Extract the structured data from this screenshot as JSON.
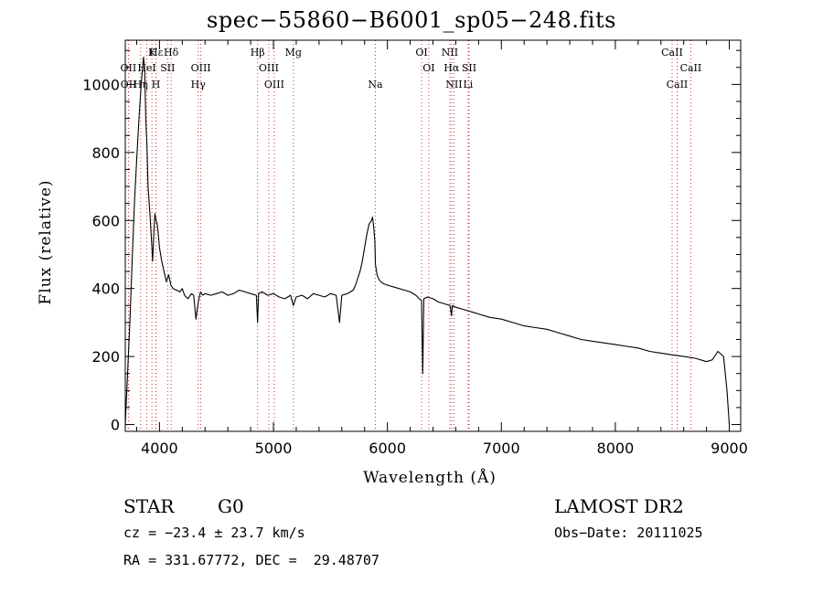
{
  "header": {
    "title": "spec−55860−B6001_sp05−248.fits"
  },
  "footer": {
    "class_label": "STAR",
    "subclass_label": "G0",
    "survey": "LAMOST DR2",
    "cz": "cz = −23.4 ± 23.7 km/s",
    "obs_date": "Obs−Date: 20111025",
    "radec": "RA = 331.67772, DEC =  29.48707"
  },
  "chart_data": {
    "type": "line",
    "title": "spec−55860−B6001_sp05−248.fits",
    "xlabel": "Wavelength (Å)",
    "ylabel": "Flux (relative)",
    "xlim": [
      3700,
      9100
    ],
    "ylim": [
      -20,
      1130
    ],
    "x_ticks": [
      4000,
      5000,
      6000,
      7000,
      8000,
      9000
    ],
    "y_ticks": [
      0,
      200,
      400,
      600,
      800,
      1000
    ],
    "grid": false,
    "series": [
      {
        "x": [
          3700,
          3720,
          3740,
          3760,
          3780,
          3800,
          3820,
          3840,
          3860,
          3870,
          3880,
          3890,
          3900,
          3910,
          3920,
          3930,
          3940,
          3950,
          3960,
          3970,
          3980,
          3990,
          4000,
          4020,
          4040,
          4060,
          4080,
          4100,
          4120,
          4150,
          4180,
          4200,
          4220,
          4250,
          4280,
          4300,
          4320,
          4340,
          4360,
          4380,
          4400,
          4450,
          4500,
          4550,
          4600,
          4650,
          4700,
          4750,
          4800,
          4850,
          4861,
          4870,
          4900,
          4950,
          5000,
          5050,
          5100,
          5150,
          5175,
          5200,
          5250,
          5300,
          5350,
          5400,
          5450,
          5500,
          5550,
          5580,
          5600,
          5650,
          5700,
          5720,
          5740,
          5760,
          5780,
          5800,
          5820,
          5840,
          5860,
          5870,
          5880,
          5890,
          5895,
          5900,
          5910,
          5920,
          5940,
          5960,
          6000,
          6050,
          6100,
          6150,
          6200,
          6250,
          6280,
          6300,
          6310,
          6320,
          6350,
          6400,
          6450,
          6500,
          6550,
          6563,
          6570,
          6600,
          6650,
          6700,
          6750,
          6800,
          6900,
          7000,
          7100,
          7200,
          7300,
          7400,
          7500,
          7600,
          7700,
          7800,
          7900,
          8000,
          8100,
          8200,
          8300,
          8400,
          8500,
          8600,
          8700,
          8800,
          8850,
          8900,
          8950,
          8980,
          9000
        ],
        "y": [
          0,
          150,
          300,
          480,
          650,
          780,
          900,
          1000,
          1080,
          1050,
          900,
          820,
          700,
          650,
          600,
          540,
          480,
          560,
          620,
          600,
          590,
          560,
          520,
          480,
          450,
          420,
          440,
          410,
          400,
          395,
          390,
          400,
          380,
          370,
          385,
          380,
          310,
          360,
          390,
          380,
          385,
          380,
          385,
          390,
          380,
          385,
          395,
          390,
          385,
          380,
          300,
          385,
          390,
          380,
          385,
          375,
          370,
          380,
          350,
          375,
          380,
          370,
          385,
          380,
          375,
          385,
          380,
          300,
          380,
          385,
          395,
          410,
          430,
          450,
          480,
          520,
          560,
          590,
          600,
          610,
          580,
          540,
          470,
          460,
          440,
          430,
          420,
          415,
          410,
          405,
          400,
          395,
          390,
          380,
          370,
          365,
          150,
          370,
          375,
          370,
          360,
          355,
          350,
          320,
          350,
          345,
          340,
          335,
          330,
          325,
          315,
          310,
          300,
          290,
          285,
          280,
          270,
          260,
          250,
          245,
          240,
          235,
          230,
          225,
          215,
          210,
          205,
          200,
          195,
          185,
          190,
          215,
          200,
          100,
          0
        ]
      }
    ],
    "line_markers": [
      {
        "label": "Hε",
        "w": 3970,
        "row": 1
      },
      {
        "label": "OII",
        "w": 3727,
        "row": 2
      },
      {
        "label": "OII",
        "w": 3729,
        "row": 3
      },
      {
        "label": "K",
        "w": 3934,
        "row": 1
      },
      {
        "label": "HeI",
        "w": 3889,
        "row": 2
      },
      {
        "label": "Hη",
        "w": 3835,
        "row": 3
      },
      {
        "label": "Hδ",
        "w": 4102,
        "row": 1
      },
      {
        "label": "SII",
        "w": 4072,
        "row": 2
      },
      {
        "label": "H",
        "w": 3969,
        "row": 3
      },
      {
        "label": "OIII",
        "w": 4363,
        "row": 2
      },
      {
        "label": "Hγ",
        "w": 4340,
        "row": 3
      },
      {
        "label": "Hβ",
        "w": 4861,
        "row": 1
      },
      {
        "label": "OIII",
        "w": 4959,
        "row": 2
      },
      {
        "label": "OIII",
        "w": 5007,
        "row": 3
      },
      {
        "label": "Mg",
        "w": 5175,
        "row": 1
      },
      {
        "label": "Na",
        "w": 5894,
        "row": 3
      },
      {
        "label": "OI",
        "w": 6300,
        "row": 1
      },
      {
        "label": "OI",
        "w": 6363,
        "row": 2
      },
      {
        "label": "NII",
        "w": 6548,
        "row": 1
      },
      {
        "label": "Hα",
        "w": 6563,
        "row": 2
      },
      {
        "label": "SII",
        "w": 6717,
        "row": 2
      },
      {
        "label": "NII",
        "w": 6584,
        "row": 3
      },
      {
        "label": "Li",
        "w": 6708,
        "row": 3
      },
      {
        "label": "CaII",
        "w": 8498,
        "row": 1
      },
      {
        "label": "CaII",
        "w": 8662,
        "row": 2
      },
      {
        "label": "CaII",
        "w": 8542,
        "row": 3
      }
    ]
  }
}
